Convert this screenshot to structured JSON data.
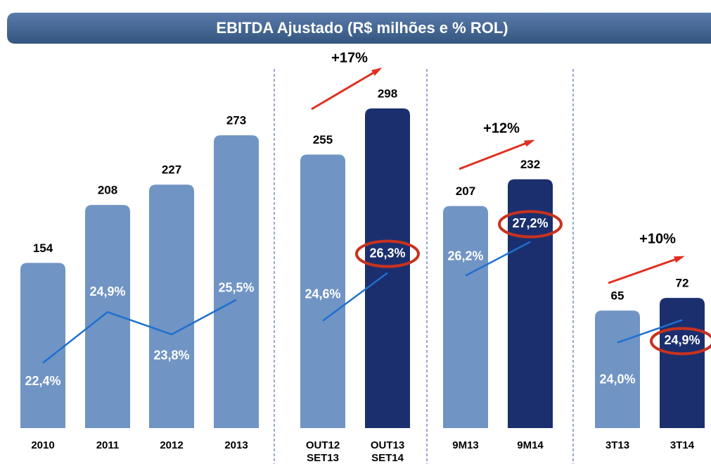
{
  "title": "EBITDA Ajustado (R$ milhões e % ROL)",
  "chart_data": [
    {
      "type": "bar",
      "categories": [
        "2010",
        "2011",
        "2012",
        "2013"
      ],
      "values": [
        154,
        208,
        227,
        273
      ],
      "colors": [
        "#7094c4",
        "#7094c4",
        "#7094c4",
        "#7094c4"
      ],
      "ylim": [
        0,
        300
      ],
      "line": {
        "values": [
          22.4,
          24.9,
          23.8,
          25.5
        ],
        "value_labels": [
          "22,4%",
          "24,9%",
          "23,8%",
          "25,5%"
        ],
        "color": "#1f6fd0",
        "y2lim": [
          19.2,
          35
        ]
      }
    },
    {
      "type": "bar",
      "categories": [
        "OUT12 SET13",
        "OUT13 SET14"
      ],
      "values": [
        255,
        298
      ],
      "colors": [
        "#7094c4",
        "#1b2f6e"
      ],
      "ylim": [
        0,
        300
      ],
      "annotation": "+17%",
      "line": {
        "values": [
          24.6,
          26.3
        ],
        "value_labels": [
          "24,6%",
          "26,3%"
        ],
        "color": "#1f6fd0",
        "y2lim": [
          20.8,
          32.2
        ]
      }
    },
    {
      "type": "bar",
      "categories": [
        "9M13",
        "9M14"
      ],
      "values": [
        207,
        232
      ],
      "colors": [
        "#7094c4",
        "#1b2f6e"
      ],
      "ylim": [
        0,
        300
      ],
      "annotation": "+12%",
      "line": {
        "values": [
          26.2,
          27.2
        ],
        "value_labels": [
          "26,2%",
          "27,2%"
        ],
        "color": "#1f6fd0",
        "y2lim": [
          21.7,
          31.2
        ]
      }
    },
    {
      "type": "bar",
      "categories": [
        "3T13",
        "3T14"
      ],
      "values": [
        65,
        72
      ],
      "colors": [
        "#7094c4",
        "#1b2f6e"
      ],
      "ylim": [
        0,
        178
      ],
      "annotation": "+10%",
      "line": {
        "values": [
          24.0,
          24.9
        ],
        "value_labels": [
          "24,0%",
          "24,9%"
        ],
        "color": "#1f6fd0",
        "y2lim": [
          20.6,
          33.4
        ]
      }
    }
  ]
}
